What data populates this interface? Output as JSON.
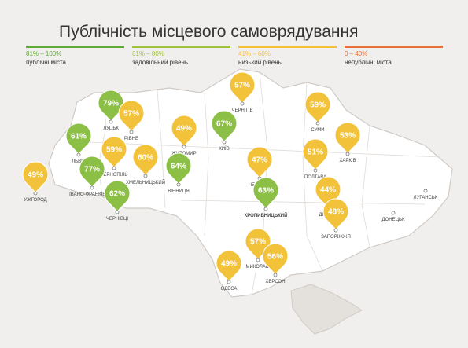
{
  "header": {
    "title": "Публічність місцевого самоврядування"
  },
  "legend": [
    {
      "range": "81% – 100%",
      "label": "публічні міста",
      "color": "#5fa83a"
    },
    {
      "range": "61% – 80%",
      "label": "задовільний рівень",
      "color": "#9fc23c"
    },
    {
      "range": "41% – 60%",
      "label": "низький рівень",
      "color": "#f2c23a"
    },
    {
      "range": "0 – 40%",
      "label": "непублічні міста",
      "color": "#e8703a"
    }
  ],
  "cities": [
    {
      "name": "ЛУЦЬК",
      "pct": "79%",
      "color": "#8cbf45"
    },
    {
      "name": "РІВНЕ",
      "pct": "57%",
      "color": "#f2c23a"
    },
    {
      "name": "ЧЕРНІГІВ",
      "pct": "57%",
      "color": "#f2c23a"
    },
    {
      "name": "СУМИ",
      "pct": "59%",
      "color": "#f2c23a"
    },
    {
      "name": "ХАРКІВ",
      "pct": "53%",
      "color": "#f2c23a"
    },
    {
      "name": "ПОЛТАВА",
      "pct": "51%",
      "color": "#f2c23a"
    },
    {
      "name": "КИЇВ",
      "pct": "67%",
      "color": "#8cbf45"
    },
    {
      "name": "ЖИТОМИР",
      "pct": "49%",
      "color": "#f2c23a"
    },
    {
      "name": "ЛЬВІВ",
      "pct": "61%",
      "color": "#8cbf45"
    },
    {
      "name": "ТЕРНОПІЛЬ",
      "pct": "59%",
      "color": "#f2c23a"
    },
    {
      "name": "ХМЕЛЬНИЦЬКИЙ",
      "pct": "60%",
      "color": "#f2c23a"
    },
    {
      "name": "ВІННИЦЯ",
      "pct": "64%",
      "color": "#8cbf45"
    },
    {
      "name": "ІВАНО-ФРАНКІВСЬК",
      "pct": "77%",
      "color": "#8cbf45"
    },
    {
      "name": "ЧЕРНІВЦІ",
      "pct": "62%",
      "color": "#8cbf45"
    },
    {
      "name": "УЖГОРОД",
      "pct": "49%",
      "color": "#f2c23a"
    },
    {
      "name": "ЧЕРКАСИ",
      "pct": "47%",
      "color": "#f2c23a"
    },
    {
      "name": "КРОПИВНИЦЬКИЙ",
      "pct": "63%",
      "color": "#8cbf45"
    },
    {
      "name": "ДНІПРО",
      "pct": "44%",
      "color": "#f2c23a"
    },
    {
      "name": "ЗАПОРІЖЖЯ",
      "pct": "48%",
      "color": "#f2c23a"
    },
    {
      "name": "МИКОЛАЇВ",
      "pct": "57%",
      "color": "#f2c23a"
    },
    {
      "name": "ХЕРСОН",
      "pct": "56%",
      "color": "#f2c23a"
    },
    {
      "name": "ОДЕСА",
      "pct": "49%",
      "color": "#f2c23a"
    }
  ],
  "other_cities": [
    "ЛУГАНСЬК",
    "ДОНЕЦЬК"
  ]
}
